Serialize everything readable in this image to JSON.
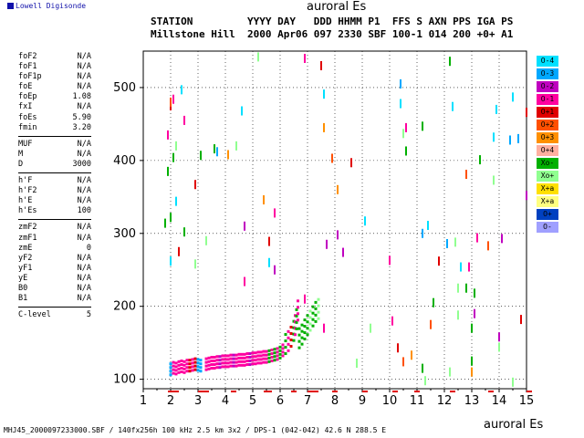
{
  "logo_text": "Lowell Digisonde",
  "header": {
    "plot_title": "auroral Es",
    "line1": "STATION         YYYY DAY   DDD HHMM P1  FFS S AXN PPS IGA PS",
    "line2": "Millstone Hill  2000 Apr06 097 2330 SBF 100-1 014 200 +0+ A1"
  },
  "params": [
    [
      {
        "label": "foF2",
        "value": "N/A"
      },
      {
        "label": "foF1",
        "value": "N/A"
      },
      {
        "label": "foF1p",
        "value": "N/A"
      },
      {
        "label": "foE",
        "value": "N/A"
      },
      {
        "label": "foEp",
        "value": "1.08"
      },
      {
        "label": "fxI",
        "value": "N/A"
      },
      {
        "label": "foEs",
        "value": "5.90"
      },
      {
        "label": "fmin",
        "value": "3.20"
      }
    ],
    [
      {
        "label": "MUF",
        "value": "N/A"
      },
      {
        "label": "M",
        "value": "N/A"
      },
      {
        "label": "D",
        "value": "3000"
      }
    ],
    [
      {
        "label": "h'F",
        "value": "N/A"
      },
      {
        "label": "h'F2",
        "value": "N/A"
      },
      {
        "label": "h'E",
        "value": "N/A"
      },
      {
        "label": "h'Es",
        "value": "100"
      }
    ],
    [
      {
        "label": "zmF2",
        "value": "N/A"
      },
      {
        "label": "zmF1",
        "value": "N/A"
      },
      {
        "label": "zmE",
        "value": "0"
      },
      {
        "label": "yF2",
        "value": "N/A"
      },
      {
        "label": "yF1",
        "value": "N/A"
      },
      {
        "label": "yE",
        "value": "N/A"
      },
      {
        "label": "B0",
        "value": "N/A"
      },
      {
        "label": "B1",
        "value": "N/A"
      }
    ],
    [
      {
        "label": "C-level",
        "value": "5"
      }
    ]
  ],
  "legend": [
    {
      "label": "O-4",
      "color": "#00e0ff"
    },
    {
      "label": "O-3",
      "color": "#00a8ff"
    },
    {
      "label": "O-2",
      "color": "#c000c0"
    },
    {
      "label": "O-1",
      "color": "#ff00a0"
    },
    {
      "label": "O+1",
      "color": "#e00000"
    },
    {
      "label": "O+2",
      "color": "#ff5000"
    },
    {
      "label": "O+3",
      "color": "#ff9000"
    },
    {
      "label": "O+4",
      "color": "#ffb0a0"
    },
    {
      "label": "Xo-",
      "color": "#00b000"
    },
    {
      "label": "Xo+",
      "color": "#90ff90"
    },
    {
      "label": "X+a",
      "color": "#ffe000"
    },
    {
      "label": "X+a",
      "color": "#ffff80"
    },
    {
      "label": "O+",
      "color": "#0040c0"
    },
    {
      "label": "O-",
      "color": "#a0a0ff"
    }
  ],
  "footer": {
    "info": "MHJ45_2000097233000.SBF / 140fx256h 100 kHz 2.5 km 3x2 / DPS-1 (042-042) 42.6 N 288.5 E",
    "xaxis_label": "auroral Es"
  },
  "chart_data": {
    "type": "scatter",
    "title": "auroral Es",
    "xlim": [
      1,
      15
    ],
    "ylim": [
      87,
      550
    ],
    "xticks": [
      1,
      2,
      3,
      4,
      5,
      6,
      7,
      8,
      9,
      10,
      11,
      12,
      13,
      14,
      15
    ],
    "yticks": [
      100,
      200,
      300,
      400,
      500
    ],
    "grid": true,
    "series": [
      {
        "color_ref": 0,
        "points": [
          [
            2.4,
            497
          ],
          [
            4.6,
            468
          ],
          [
            7.6,
            491
          ],
          [
            10.4,
            478
          ],
          [
            12.3,
            474
          ],
          [
            13.8,
            432
          ],
          [
            13.9,
            470
          ],
          [
            14.5,
            487
          ],
          [
            2.2,
            344
          ],
          [
            11.4,
            311
          ],
          [
            12.6,
            254
          ],
          [
            2.0,
            262
          ],
          [
            9.1,
            317
          ],
          [
            5.6,
            260
          ]
        ]
      },
      {
        "color_ref": 1,
        "points": [
          [
            3.7,
            412
          ],
          [
            11.2,
            300
          ],
          [
            12.1,
            286
          ],
          [
            10.4,
            505
          ],
          [
            14.7,
            430
          ],
          [
            14.4,
            428
          ]
        ]
      },
      {
        "color_ref": 3,
        "points": [
          [
            1.9,
            435
          ],
          [
            2.5,
            455
          ],
          [
            2.1,
            484
          ],
          [
            6.9,
            540
          ],
          [
            10.6,
            445
          ],
          [
            13.2,
            294
          ],
          [
            12.9,
            254
          ],
          [
            10.0,
            263
          ],
          [
            4.7,
            234
          ],
          [
            5.8,
            328
          ],
          [
            7.6,
            170
          ],
          [
            10.1,
            180
          ],
          [
            6.9,
            210
          ]
        ]
      },
      {
        "color_ref": 4,
        "points": [
          [
            2.0,
            475
          ],
          [
            7.5,
            530
          ],
          [
            5.6,
            289
          ],
          [
            11.8,
            262
          ],
          [
            2.3,
            275
          ],
          [
            8.6,
            397
          ],
          [
            2.9,
            367
          ],
          [
            14.8,
            182
          ],
          [
            10.3,
            143
          ],
          [
            15.0,
            466
          ]
        ]
      },
      {
        "color_ref": 5,
        "points": [
          [
            2.0,
            480
          ],
          [
            7.9,
            403
          ],
          [
            12.8,
            381
          ],
          [
            11.5,
            175
          ],
          [
            10.5,
            124
          ],
          [
            13.6,
            283
          ]
        ]
      },
      {
        "color_ref": 6,
        "points": [
          [
            7.6,
            445
          ],
          [
            4.1,
            408
          ],
          [
            5.4,
            346
          ],
          [
            8.1,
            360
          ],
          [
            10.8,
            133
          ],
          [
            13.0,
            110
          ]
        ]
      },
      {
        "color_ref": 8,
        "points": [
          [
            1.9,
            385
          ],
          [
            2.1,
            404
          ],
          [
            1.8,
            314
          ],
          [
            2.5,
            302
          ],
          [
            3.6,
            416
          ],
          [
            3.1,
            407
          ],
          [
            10.6,
            413
          ],
          [
            11.2,
            447
          ],
          [
            12.2,
            536
          ],
          [
            13.3,
            401
          ],
          [
            2.0,
            322
          ],
          [
            11.6,
            205
          ],
          [
            13.0,
            170
          ],
          [
            13.1,
            218
          ],
          [
            12.8,
            225
          ],
          [
            11.2,
            115
          ],
          [
            13.0,
            125
          ]
        ]
      },
      {
        "color_ref": 9,
        "points": [
          [
            2.2,
            420
          ],
          [
            4.4,
            420
          ],
          [
            5.2,
            542
          ],
          [
            10.5,
            437
          ],
          [
            13.8,
            373
          ],
          [
            12.4,
            288
          ],
          [
            12.5,
            225
          ],
          [
            11.3,
            98
          ],
          [
            14.5,
            96
          ],
          [
            12.2,
            110
          ],
          [
            14.0,
            144
          ],
          [
            8.8,
            122
          ],
          [
            9.3,
            170
          ],
          [
            12.5,
            188
          ],
          [
            3.3,
            290
          ],
          [
            2.9,
            258
          ]
        ]
      },
      {
        "color_ref": 2,
        "points": [
          [
            7.7,
            285
          ],
          [
            4.7,
            310
          ],
          [
            8.3,
            274
          ],
          [
            5.8,
            250
          ],
          [
            8.1,
            298
          ],
          [
            14.1,
            293
          ],
          [
            14.0,
            158
          ],
          [
            13.1,
            190
          ],
          [
            15.0,
            352
          ]
        ]
      }
    ],
    "trace": [
      {
        "color_ref": 1,
        "x": 2.0,
        "h": 103
      },
      {
        "color_ref": 3,
        "x": 2.1,
        "h": 105
      },
      {
        "color_ref": 3,
        "x": 2.2,
        "h": 104
      },
      {
        "color_ref": 3,
        "x": 2.3,
        "h": 106
      },
      {
        "color_ref": 3,
        "x": 2.4,
        "h": 107
      },
      {
        "color_ref": 3,
        "x": 2.5,
        "h": 106
      },
      {
        "color_ref": 3,
        "x": 2.6,
        "h": 108
      },
      {
        "color_ref": 4,
        "x": 2.7,
        "h": 108
      },
      {
        "color_ref": 3,
        "x": 2.8,
        "h": 109
      },
      {
        "color_ref": 4,
        "x": 2.9,
        "h": 110
      },
      {
        "color_ref": 1,
        "x": 3.0,
        "h": 109
      },
      {
        "color_ref": 1,
        "x": 3.1,
        "h": 108
      },
      {
        "color_ref": 3,
        "x": 3.3,
        "h": 110
      },
      {
        "color_ref": 3,
        "x": 3.4,
        "h": 111
      },
      {
        "color_ref": 3,
        "x": 3.5,
        "h": 112
      },
      {
        "color_ref": 3,
        "x": 3.6,
        "h": 112
      },
      {
        "color_ref": 3,
        "x": 3.7,
        "h": 113
      },
      {
        "color_ref": 2,
        "x": 3.8,
        "h": 113
      },
      {
        "color_ref": 3,
        "x": 3.9,
        "h": 114
      },
      {
        "color_ref": 3,
        "x": 4.0,
        "h": 114
      },
      {
        "color_ref": 3,
        "x": 4.1,
        "h": 114
      },
      {
        "color_ref": 3,
        "x": 4.2,
        "h": 115
      },
      {
        "color_ref": 2,
        "x": 4.3,
        "h": 115
      },
      {
        "color_ref": 3,
        "x": 4.4,
        "h": 115
      },
      {
        "color_ref": 3,
        "x": 4.5,
        "h": 116
      },
      {
        "color_ref": 3,
        "x": 4.6,
        "h": 116
      },
      {
        "color_ref": 3,
        "x": 4.7,
        "h": 116
      },
      {
        "color_ref": 3,
        "x": 4.8,
        "h": 117
      },
      {
        "color_ref": 2,
        "x": 4.9,
        "h": 117
      },
      {
        "color_ref": 3,
        "x": 5.0,
        "h": 118
      },
      {
        "color_ref": 3,
        "x": 5.1,
        "h": 118
      },
      {
        "color_ref": 3,
        "x": 5.2,
        "h": 119
      },
      {
        "color_ref": 3,
        "x": 5.3,
        "h": 119
      },
      {
        "color_ref": 3,
        "x": 5.4,
        "h": 120
      },
      {
        "color_ref": 3,
        "x": 5.5,
        "h": 120
      },
      {
        "color_ref": 8,
        "x": 5.6,
        "h": 121
      },
      {
        "color_ref": 3,
        "x": 5.7,
        "h": 122
      },
      {
        "color_ref": 8,
        "x": 5.8,
        "h": 123
      },
      {
        "color_ref": 3,
        "x": 5.9,
        "h": 124
      },
      {
        "color_ref": 8,
        "x": 6.0,
        "h": 126
      },
      {
        "color_ref": 3,
        "x": 6.1,
        "h": 129
      },
      {
        "color_ref": 8,
        "x": 6.2,
        "h": 132
      },
      {
        "color_ref": 3,
        "x": 6.3,
        "h": 136
      },
      {
        "color_ref": 4,
        "x": 6.4,
        "h": 142
      },
      {
        "color_ref": 8,
        "x": 6.5,
        "h": 150
      },
      {
        "color_ref": 3,
        "x": 6.55,
        "h": 158
      },
      {
        "color_ref": 8,
        "x": 6.6,
        "h": 166
      },
      {
        "color_ref": 3,
        "x": 6.65,
        "h": 178
      },
      {
        "color_ref": 8,
        "x": 6.7,
        "h": 140
      },
      {
        "color_ref": 8,
        "x": 6.8,
        "h": 145
      },
      {
        "color_ref": 8,
        "x": 6.9,
        "h": 152
      },
      {
        "color_ref": 8,
        "x": 7.0,
        "h": 158
      },
      {
        "color_ref": 9,
        "x": 7.1,
        "h": 164
      },
      {
        "color_ref": 8,
        "x": 7.2,
        "h": 170
      },
      {
        "color_ref": 8,
        "x": 7.3,
        "h": 176
      },
      {
        "color_ref": 9,
        "x": 7.4,
        "h": 180
      }
    ],
    "bottom_ticks": [
      [
        2.0
      ],
      [
        2.2
      ],
      [
        3.1
      ],
      [
        3.3
      ],
      [
        4.3
      ],
      [
        5.5
      ],
      [
        5.6
      ],
      [
        6.5
      ],
      [
        7.1
      ],
      [
        7.3
      ],
      [
        8.0
      ],
      [
        9.1
      ],
      [
        10.2
      ],
      [
        11.0
      ],
      [
        12.3
      ],
      [
        13.7
      ],
      [
        15.1
      ]
    ]
  }
}
